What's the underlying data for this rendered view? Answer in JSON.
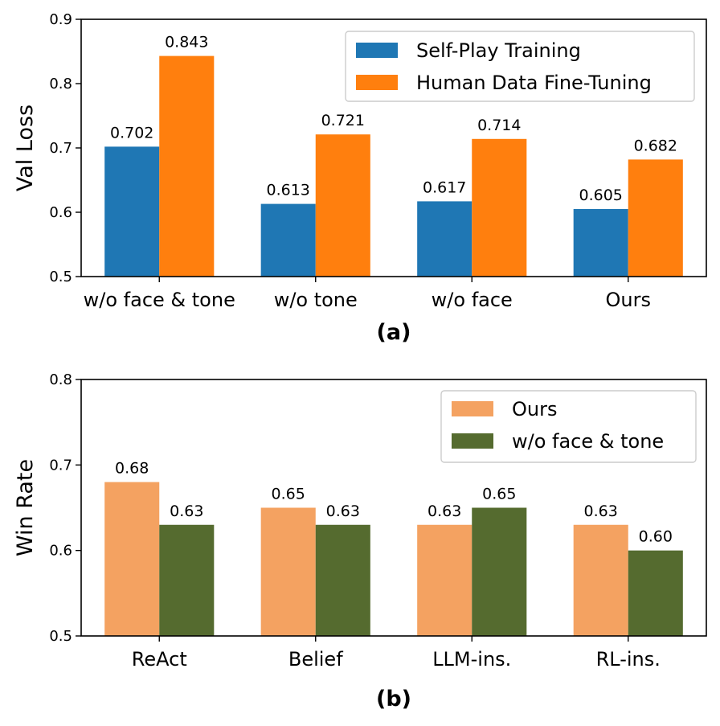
{
  "chart_data": [
    {
      "type": "bar",
      "subtitle": "(a)",
      "ylabel": "Val Loss",
      "xlabel": "",
      "ylim": [
        0.5,
        0.9
      ],
      "yticks": [
        0.5,
        0.6,
        0.7,
        0.8,
        0.9
      ],
      "ytick_labels": [
        "0.5",
        "0.6",
        "0.7",
        "0.8",
        "0.9"
      ],
      "categories": [
        "w/o face & tone",
        "w/o tone",
        "w/o face",
        "Ours"
      ],
      "series": [
        {
          "name": "Self-Play Training",
          "color": "#1f77b4",
          "values": [
            0.702,
            0.613,
            0.617,
            0.605
          ],
          "labels": [
            "0.702",
            "0.613",
            "0.617",
            "0.605"
          ]
        },
        {
          "name": "Human Data Fine-Tuning",
          "color": "#ff7f0e",
          "values": [
            0.843,
            0.721,
            0.714,
            0.682
          ],
          "labels": [
            "0.843",
            "0.721",
            "0.714",
            "0.682"
          ]
        }
      ],
      "legend": "top-right",
      "grid": false
    },
    {
      "type": "bar",
      "subtitle": "(b)",
      "ylabel": "Win Rate",
      "xlabel": "",
      "ylim": [
        0.5,
        0.8
      ],
      "yticks": [
        0.5,
        0.6,
        0.7,
        0.8
      ],
      "ytick_labels": [
        "0.5",
        "0.6",
        "0.7",
        "0.8"
      ],
      "categories": [
        "ReAct",
        "Belief",
        "LLM-ins.",
        "RL-ins."
      ],
      "series": [
        {
          "name": "Ours",
          "color": "#f4a261",
          "values": [
            0.68,
            0.65,
            0.63,
            0.63
          ],
          "labels": [
            "0.68",
            "0.65",
            "0.63",
            "0.63"
          ]
        },
        {
          "name": "w/o face & tone",
          "color": "#556b2f",
          "values": [
            0.63,
            0.63,
            0.65,
            0.6
          ],
          "labels": [
            "0.63",
            "0.63",
            "0.65",
            "0.60"
          ]
        }
      ],
      "legend": "top-right",
      "grid": false
    }
  ]
}
